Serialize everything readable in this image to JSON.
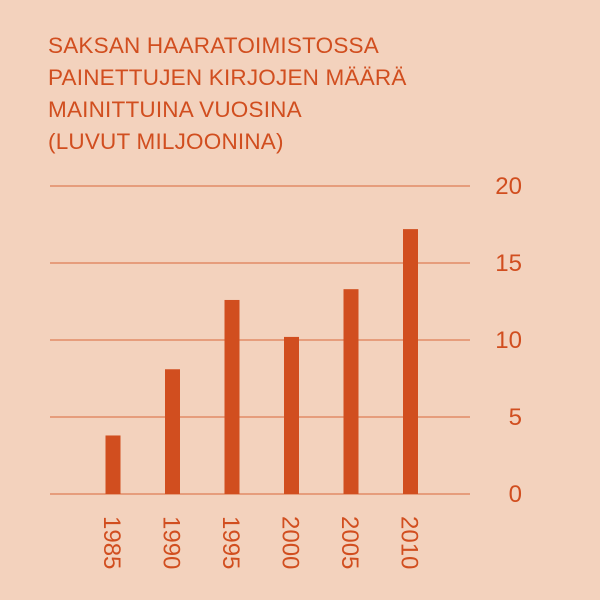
{
  "title_lines": [
    "SAKSAN HAARATOIMISTOSSA",
    "PAINETTUJEN KIRJOJEN MÄÄRÄ",
    "MAINITTUINA VUOSINA",
    "(LUVUT MILJOONINA)"
  ],
  "colors": {
    "background": "#f3d2bd",
    "bar": "#d14e1f",
    "text": "#d14e1f",
    "grid": "#d9683a"
  },
  "chart_data": {
    "type": "bar",
    "title": "SAKSAN HAARATOIMISTOSSA PAINETTUJEN KIRJOJEN MÄÄRÄ MAINITTUINA VUOSINA (LUVUT MILJOONINA)",
    "categories": [
      "1985",
      "1990",
      "1995",
      "2000",
      "2005",
      "2010"
    ],
    "values": [
      3.8,
      8.1,
      12.6,
      10.2,
      13.3,
      17.2
    ],
    "xlabel": "",
    "ylabel": "",
    "ylim": [
      0,
      20
    ],
    "yticks": [
      "0",
      "5",
      "10",
      "15",
      "20"
    ],
    "grid": true,
    "y_axis_side": "right",
    "x_tick_rotation": "vertical"
  }
}
